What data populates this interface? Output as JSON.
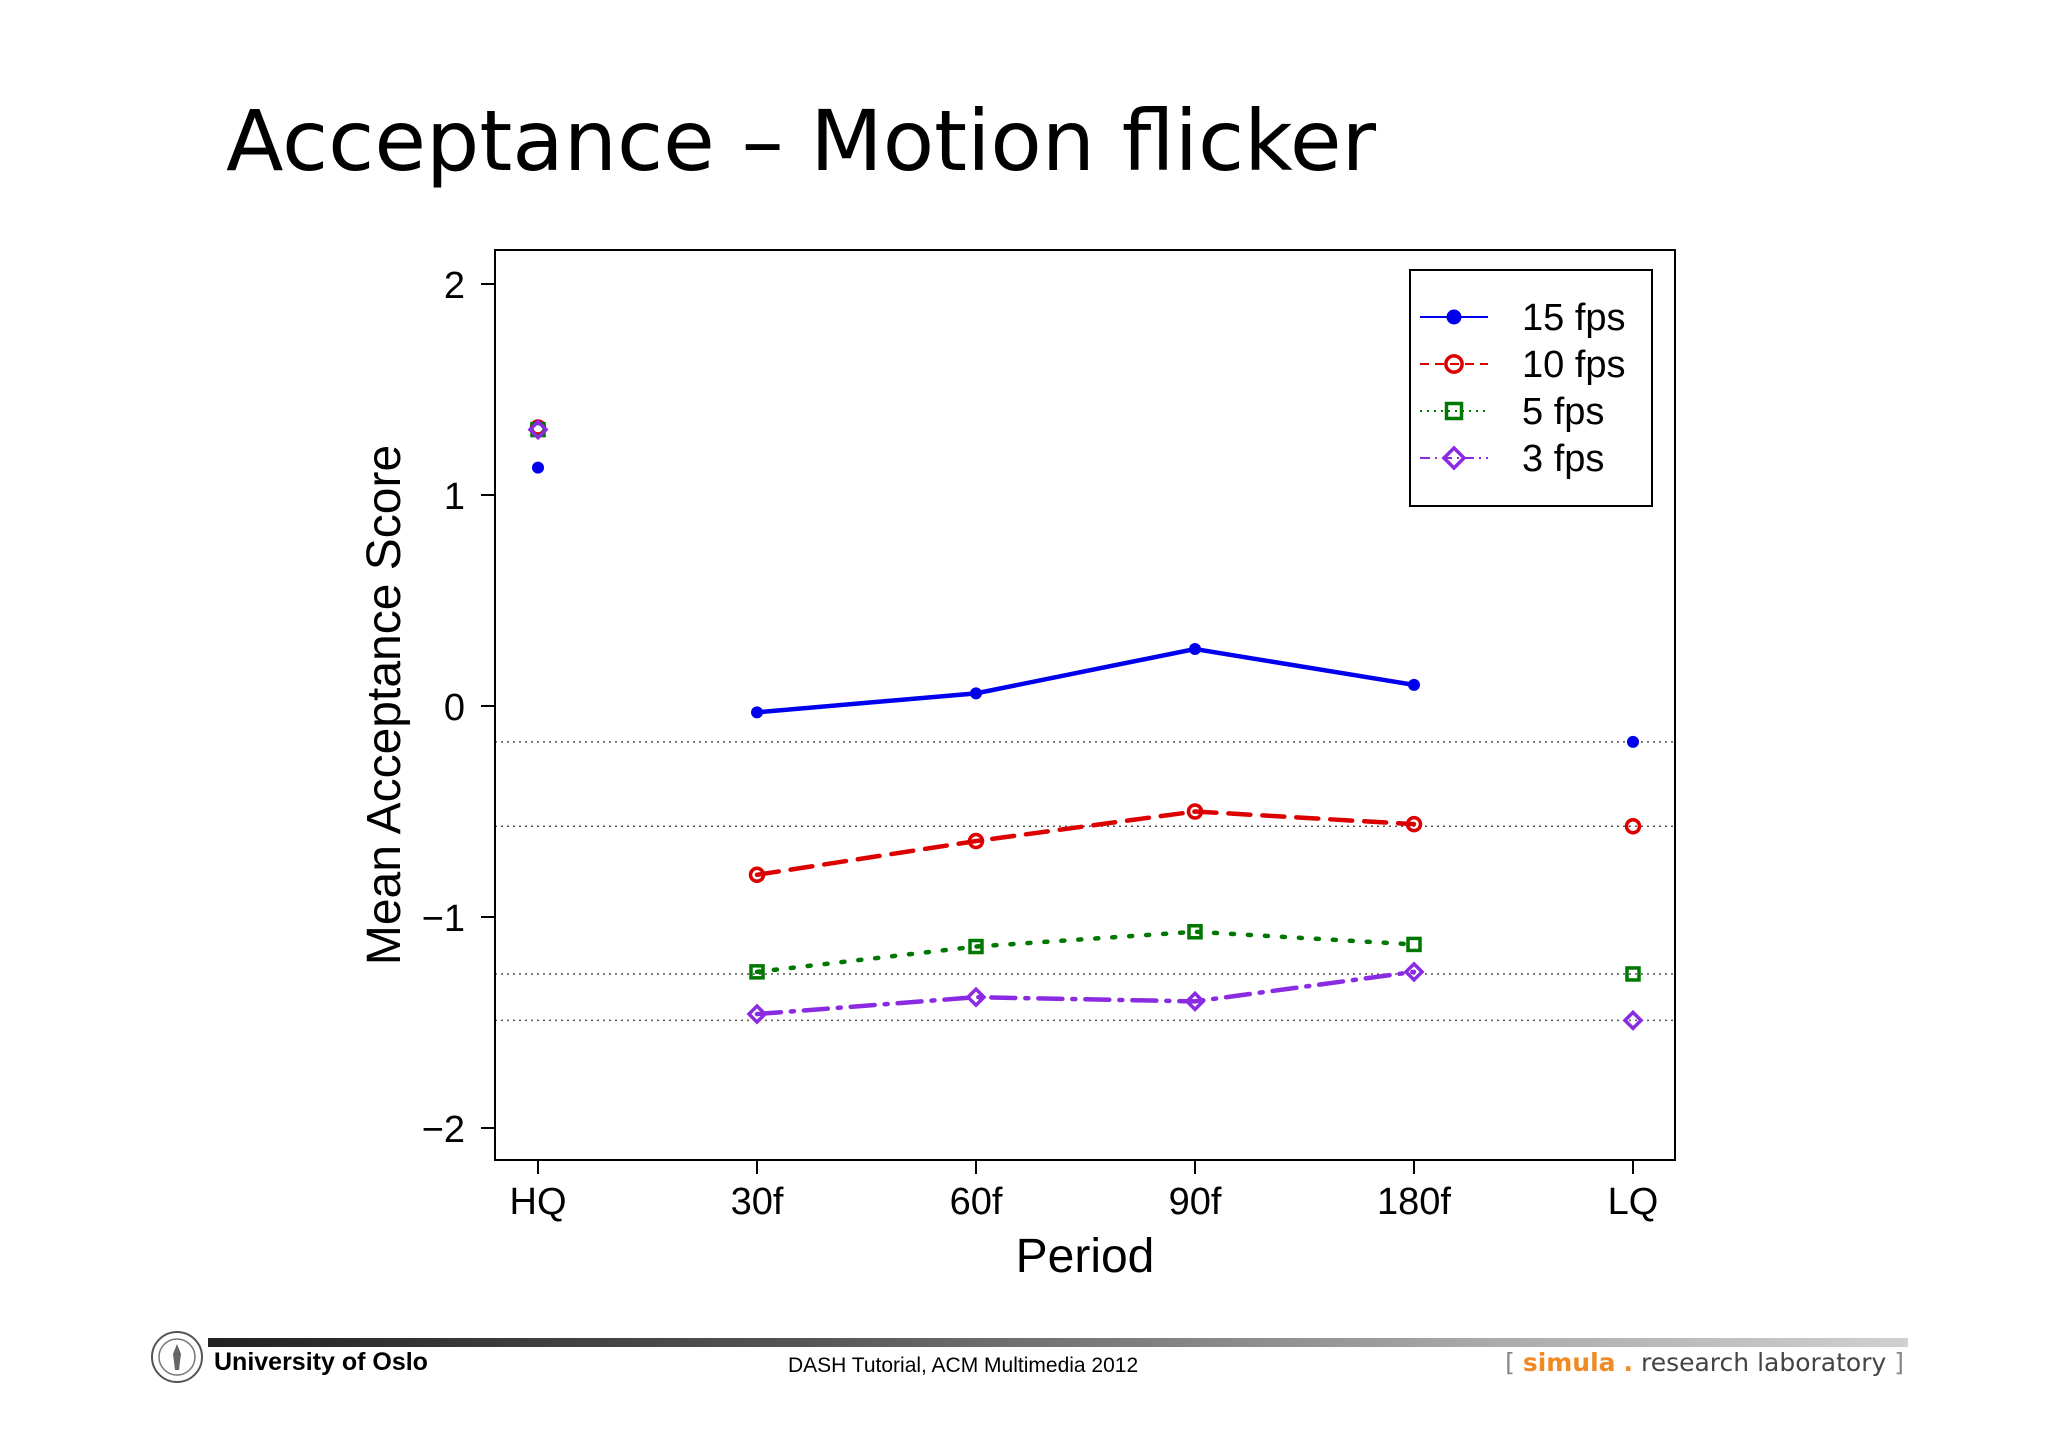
{
  "slide": {
    "title": "Acceptance – Motion flicker"
  },
  "footer": {
    "institution": "University of Oslo",
    "center_text": "DASH Tutorial, ACM Multimedia 2012",
    "logo_bracket_open": "[",
    "logo_brand": "simula",
    "logo_dot": ".",
    "logo_rest": "research laboratory",
    "logo_bracket_close": "]",
    "brand_color": "#f08a24"
  },
  "chart_data": {
    "type": "line",
    "title": "",
    "xlabel": "Period",
    "ylabel": "Mean Acceptance Score",
    "categories": [
      "HQ",
      "30f",
      "60f",
      "90f",
      "180f",
      "LQ"
    ],
    "ylim": [
      -2.15,
      2.15
    ],
    "yticks": [
      -2,
      -1,
      0,
      1,
      2
    ],
    "ytick_labels": [
      "−2",
      "−1",
      "0",
      "1",
      "2"
    ],
    "legend_position": "top-right",
    "grid": false,
    "reference_lines": [
      -0.17,
      -0.57,
      -1.27,
      -1.49
    ],
    "series": [
      {
        "name": "15 fps",
        "color": "#0000ee",
        "line_style": "solid",
        "marker": "filled-circle",
        "values": [
          1.13,
          -0.03,
          0.06,
          0.27,
          0.1,
          -0.17
        ]
      },
      {
        "name": "10 fps",
        "color": "#dd0000",
        "line_style": "dashed",
        "marker": "open-circle",
        "values": [
          1.32,
          -0.8,
          -0.64,
          -0.5,
          -0.56,
          -0.57
        ]
      },
      {
        "name": "5 fps",
        "color": "#007700",
        "line_style": "dotted",
        "marker": "open-square",
        "values": [
          1.31,
          -1.26,
          -1.14,
          -1.07,
          -1.13,
          -1.27
        ]
      },
      {
        "name": "3 fps",
        "color": "#8a2be2",
        "line_style": "dotdash",
        "marker": "open-diamond",
        "values": [
          1.31,
          -1.46,
          -1.38,
          -1.4,
          -1.26,
          -1.49
        ]
      }
    ]
  }
}
